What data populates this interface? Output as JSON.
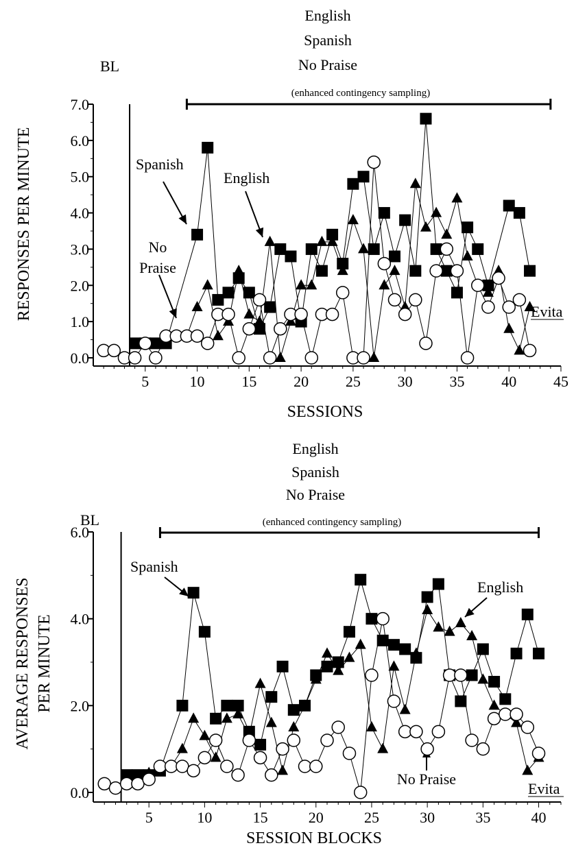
{
  "chart_data": [
    {
      "type": "line",
      "xlabel": "SESSIONS",
      "ylabel": "RESPONSES PER MINUTE",
      "xlim": [
        0,
        45
      ],
      "ylim": [
        0,
        7
      ],
      "xticks": [
        5,
        10,
        15,
        20,
        25,
        30,
        35,
        40,
        45
      ],
      "yticks": [
        "0.0",
        "1.0",
        "2.0",
        "3.0",
        "4.0",
        "5.0",
        "6.0",
        "7.0"
      ],
      "phase_labels": {
        "baseline": "BL",
        "condition_lines": [
          "English",
          "Spanish",
          "No Praise"
        ],
        "condition_note": "(enhanced contingency sampling)",
        "participant": "Evita"
      },
      "phase_line_x": 3.5,
      "bracket_x": [
        9,
        44
      ],
      "annotations": {
        "spanish": "Spanish",
        "english": "English",
        "no_praise_1": "No",
        "no_praise_2": "Praise"
      },
      "series": [
        {
          "name": "Spanish",
          "marker": "square",
          "points": [
            [
              4,
              0.4
            ],
            [
              5,
              0.4
            ],
            [
              6,
              0.4
            ],
            [
              7,
              0.4
            ],
            [
              10,
              3.4
            ],
            [
              11,
              5.8
            ],
            [
              12,
              1.6
            ],
            [
              13,
              1.8
            ],
            [
              14,
              2.2
            ],
            [
              15,
              1.8
            ],
            [
              16,
              0.8
            ],
            [
              17,
              1.4
            ],
            [
              18,
              3.0
            ],
            [
              19,
              2.8
            ],
            [
              20,
              1.0
            ],
            [
              21,
              3.0
            ],
            [
              22,
              2.4
            ],
            [
              23,
              3.4
            ],
            [
              24,
              2.6
            ],
            [
              25,
              4.8
            ],
            [
              26,
              5.0
            ],
            [
              27,
              3.0
            ],
            [
              28,
              4.0
            ],
            [
              29,
              2.8
            ],
            [
              30,
              3.8
            ],
            [
              31,
              2.4
            ],
            [
              32,
              6.6
            ],
            [
              33,
              3.0
            ],
            [
              34,
              2.4
            ],
            [
              35,
              1.8
            ],
            [
              36,
              3.6
            ],
            [
              37,
              3.0
            ],
            [
              38,
              2.0
            ],
            [
              40,
              4.2
            ],
            [
              41,
              4.0
            ],
            [
              42,
              2.4
            ]
          ]
        },
        {
          "name": "English",
          "marker": "triangle",
          "points": [
            [
              8,
              0.6
            ],
            [
              9,
              0.6
            ],
            [
              10,
              1.4
            ],
            [
              11,
              2.0
            ],
            [
              12,
              0.6
            ],
            [
              13,
              1.0
            ],
            [
              14,
              2.4
            ],
            [
              15,
              1.2
            ],
            [
              16,
              1.0
            ],
            [
              17,
              3.2
            ],
            [
              18,
              0.0
            ],
            [
              19,
              1.0
            ],
            [
              20,
              2.0
            ],
            [
              21,
              2.0
            ],
            [
              22,
              3.2
            ],
            [
              23,
              3.2
            ],
            [
              24,
              2.4
            ],
            [
              25,
              3.8
            ],
            [
              26,
              3.0
            ],
            [
              27,
              0.0
            ],
            [
              28,
              2.0
            ],
            [
              29,
              2.4
            ],
            [
              30,
              1.4
            ],
            [
              31,
              4.8
            ],
            [
              32,
              3.6
            ],
            [
              33,
              4.0
            ],
            [
              34,
              3.4
            ],
            [
              35,
              4.4
            ],
            [
              36,
              2.8
            ],
            [
              37,
              2.0
            ],
            [
              38,
              1.8
            ],
            [
              39,
              2.4
            ],
            [
              40,
              0.8
            ],
            [
              41,
              0.2
            ],
            [
              42,
              1.4
            ]
          ]
        },
        {
          "name": "No Praise",
          "marker": "circle",
          "points": [
            [
              1,
              0.2
            ],
            [
              2,
              0.2
            ],
            [
              3,
              0.0
            ],
            [
              4,
              0.0
            ],
            [
              5,
              0.4
            ],
            [
              6,
              0.0
            ],
            [
              7,
              0.6
            ],
            [
              8,
              0.6
            ],
            [
              9,
              0.6
            ],
            [
              10,
              0.6
            ],
            [
              11,
              0.4
            ],
            [
              12,
              1.2
            ],
            [
              13,
              1.2
            ],
            [
              14,
              0.0
            ],
            [
              15,
              0.8
            ],
            [
              16,
              1.6
            ],
            [
              17,
              0.0
            ],
            [
              18,
              0.8
            ],
            [
              19,
              1.2
            ],
            [
              20,
              1.2
            ],
            [
              21,
              0.0
            ],
            [
              22,
              1.2
            ],
            [
              23,
              1.2
            ],
            [
              24,
              1.8
            ],
            [
              25,
              0.0
            ],
            [
              26,
              0.0
            ],
            [
              27,
              5.4
            ],
            [
              28,
              2.6
            ],
            [
              29,
              1.6
            ],
            [
              30,
              1.2
            ],
            [
              31,
              1.6
            ],
            [
              32,
              0.4
            ],
            [
              33,
              2.4
            ],
            [
              34,
              3.0
            ],
            [
              35,
              2.4
            ],
            [
              36,
              0.0
            ],
            [
              37,
              2.0
            ],
            [
              38,
              1.4
            ],
            [
              39,
              2.2
            ],
            [
              40,
              1.4
            ],
            [
              41,
              1.6
            ],
            [
              42,
              0.2
            ]
          ]
        }
      ]
    },
    {
      "type": "line",
      "xlabel": "SESSION BLOCKS",
      "ylabel_lines": [
        "AVERAGE RESPONSES",
        "PER MINUTE"
      ],
      "xlim": [
        0,
        42
      ],
      "ylim": [
        0,
        6
      ],
      "xticks": [
        5,
        10,
        15,
        20,
        25,
        30,
        35,
        40
      ],
      "yticks": [
        "0.0",
        "2.0",
        "4.0",
        "6.0"
      ],
      "phase_labels": {
        "baseline": "BL",
        "condition_lines": [
          "English",
          "Spanish",
          "No Praise"
        ],
        "condition_note": "(enhanced contingency sampling)",
        "participant": "Evita"
      },
      "phase_line_x": 2.5,
      "bracket_x": [
        6,
        40
      ],
      "annotations": {
        "spanish": "Spanish",
        "english": "English",
        "no_praise": "No Praise"
      },
      "series": [
        {
          "name": "Spanish",
          "marker": "square",
          "points": [
            [
              3,
              0.4
            ],
            [
              4,
              0.4
            ],
            [
              5,
              0.4
            ],
            [
              6,
              0.5
            ],
            [
              8,
              2.0
            ],
            [
              9,
              4.6
            ],
            [
              10,
              3.7
            ],
            [
              11,
              1.7
            ],
            [
              12,
              2.0
            ],
            [
              13,
              2.0
            ],
            [
              14,
              1.4
            ],
            [
              15,
              1.1
            ],
            [
              16,
              2.2
            ],
            [
              17,
              2.9
            ],
            [
              18,
              1.9
            ],
            [
              19,
              2.0
            ],
            [
              20,
              2.7
            ],
            [
              21,
              2.9
            ],
            [
              22,
              3.0
            ],
            [
              23,
              3.7
            ],
            [
              24,
              4.9
            ],
            [
              25,
              4.0
            ],
            [
              26,
              3.5
            ],
            [
              27,
              3.4
            ],
            [
              28,
              3.3
            ],
            [
              29,
              3.1
            ],
            [
              30,
              4.5
            ],
            [
              31,
              4.8
            ],
            [
              32,
              2.7
            ],
            [
              33,
              2.1
            ],
            [
              34,
              2.7
            ],
            [
              35,
              3.3
            ],
            [
              36,
              2.55
            ],
            [
              37,
              2.15
            ],
            [
              38,
              3.2
            ],
            [
              39,
              4.1
            ],
            [
              40,
              3.2
            ]
          ]
        },
        {
          "name": "English",
          "marker": "triangle",
          "points": [
            [
              5,
              0.45
            ],
            [
              6,
              0.55
            ],
            [
              7,
              0.6
            ],
            [
              8,
              1.0
            ],
            [
              9,
              1.7
            ],
            [
              10,
              1.3
            ],
            [
              11,
              0.8
            ],
            [
              12,
              1.7
            ],
            [
              13,
              1.8
            ],
            [
              14,
              1.3
            ],
            [
              15,
              2.5
            ],
            [
              16,
              1.6
            ],
            [
              17,
              0.5
            ],
            [
              18,
              1.5
            ],
            [
              19,
              2.0
            ],
            [
              20,
              2.6
            ],
            [
              21,
              3.2
            ],
            [
              22,
              2.8
            ],
            [
              23,
              3.1
            ],
            [
              24,
              3.4
            ],
            [
              25,
              1.5
            ],
            [
              26,
              1.0
            ],
            [
              27,
              2.9
            ],
            [
              28,
              1.9
            ],
            [
              29,
              3.2
            ],
            [
              30,
              4.2
            ],
            [
              31,
              3.8
            ],
            [
              32,
              3.7
            ],
            [
              33,
              3.9
            ],
            [
              34,
              3.6
            ],
            [
              35,
              2.6
            ],
            [
              36,
              2.0
            ],
            [
              37,
              1.8
            ],
            [
              38,
              1.6
            ],
            [
              39,
              0.5
            ],
            [
              40,
              0.8
            ]
          ]
        },
        {
          "name": "No Praise",
          "marker": "circle",
          "points": [
            [
              1,
              0.2
            ],
            [
              2,
              0.1
            ],
            [
              3,
              0.2
            ],
            [
              4,
              0.2
            ],
            [
              5,
              0.3
            ],
            [
              6,
              0.6
            ],
            [
              7,
              0.6
            ],
            [
              8,
              0.6
            ],
            [
              9,
              0.5
            ],
            [
              10,
              0.8
            ],
            [
              11,
              1.2
            ],
            [
              12,
              0.6
            ],
            [
              13,
              0.4
            ],
            [
              14,
              1.2
            ],
            [
              15,
              0.8
            ],
            [
              16,
              0.4
            ],
            [
              17,
              1.0
            ],
            [
              18,
              1.2
            ],
            [
              19,
              0.6
            ],
            [
              20,
              0.6
            ],
            [
              21,
              1.2
            ],
            [
              22,
              1.5
            ],
            [
              23,
              0.9
            ],
            [
              24,
              0.0
            ],
            [
              25,
              2.7
            ],
            [
              26,
              4.0
            ],
            [
              27,
              2.1
            ],
            [
              28,
              1.4
            ],
            [
              29,
              1.4
            ],
            [
              30,
              1.0
            ],
            [
              31,
              1.4
            ],
            [
              32,
              2.7
            ],
            [
              33,
              2.7
            ],
            [
              34,
              1.2
            ],
            [
              35,
              1.0
            ],
            [
              36,
              1.7
            ],
            [
              37,
              1.8
            ],
            [
              38,
              1.8
            ],
            [
              39,
              1.5
            ],
            [
              40,
              0.9
            ]
          ]
        }
      ]
    }
  ]
}
